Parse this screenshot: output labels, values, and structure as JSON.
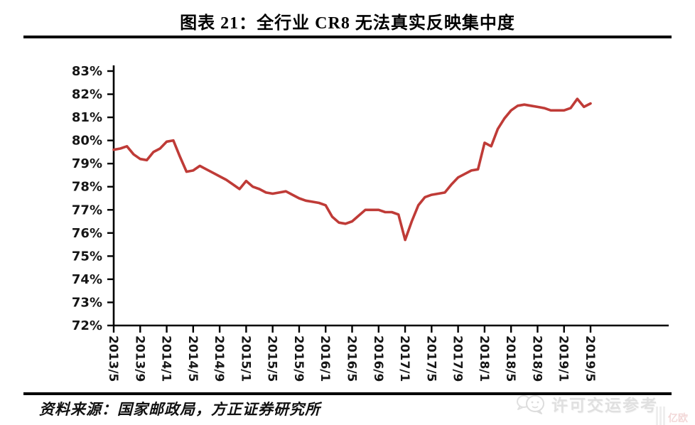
{
  "header": {
    "title": "图表 21：全行业 CR8 无法真实反映集中度"
  },
  "footer": {
    "source_text": "资料来源：国家邮政局，方正证券研究所",
    "watermark_text": "许可交运参考",
    "watermark_icon": "wechat-bubbles-icon",
    "corner_mark_text": "亿欧"
  },
  "chart_data": {
    "type": "line",
    "title": "全行业CR8无法真实反映集中度",
    "xlabel": "",
    "ylabel": "",
    "ylim": [
      72,
      83
    ],
    "y_tick_step": 1,
    "grid": false,
    "legend": "none",
    "line_color": "#bf3b37",
    "axis_color": "#000000",
    "y_tick_labels": [
      "83%",
      "82%",
      "81%",
      "80%",
      "79%",
      "78%",
      "77%",
      "76%",
      "75%",
      "74%",
      "73%",
      "72%"
    ],
    "x_tick_labels": [
      "2013/5",
      "2013/9",
      "2014/1",
      "2014/5",
      "2014/9",
      "2015/1",
      "2015/5",
      "2015/9",
      "2016/1",
      "2016/5",
      "2016/9",
      "2017/1",
      "2017/5",
      "2017/9",
      "2018/1",
      "2018/5",
      "2018/9",
      "2019/1",
      "2019/5"
    ],
    "x_tick_interval": 4,
    "x": [
      "2013/5",
      "2013/6",
      "2013/7",
      "2013/8",
      "2013/9",
      "2013/10",
      "2013/11",
      "2013/12",
      "2014/1",
      "2014/2",
      "2014/3",
      "2014/4",
      "2014/5",
      "2014/6",
      "2014/7",
      "2014/8",
      "2014/9",
      "2014/10",
      "2014/11",
      "2014/12",
      "2015/1",
      "2015/2",
      "2015/3",
      "2015/4",
      "2015/5",
      "2015/6",
      "2015/7",
      "2015/8",
      "2015/9",
      "2015/10",
      "2015/11",
      "2015/12",
      "2016/1",
      "2016/2",
      "2016/3",
      "2016/4",
      "2016/5",
      "2016/6",
      "2016/7",
      "2016/8",
      "2016/9",
      "2016/10",
      "2016/11",
      "2016/12",
      "2017/1",
      "2017/2",
      "2017/3",
      "2017/4",
      "2017/5",
      "2017/6",
      "2017/7",
      "2017/8",
      "2017/9",
      "2017/10",
      "2017/11",
      "2017/12",
      "2018/1",
      "2018/2",
      "2018/3",
      "2018/4",
      "2018/5",
      "2018/6",
      "2018/7",
      "2018/8",
      "2018/9",
      "2018/10",
      "2018/11",
      "2018/12",
      "2019/1",
      "2019/2",
      "2019/3",
      "2019/4",
      "2019/5"
    ],
    "series": [
      {
        "name": "全行业CR8 (%)",
        "values": [
          79.6,
          79.65,
          79.75,
          79.4,
          79.2,
          79.15,
          79.5,
          79.65,
          79.95,
          80.0,
          79.3,
          78.65,
          78.7,
          78.9,
          78.75,
          78.6,
          78.45,
          78.3,
          78.1,
          77.9,
          78.25,
          78.0,
          77.9,
          77.75,
          77.7,
          77.75,
          77.8,
          77.65,
          77.5,
          77.4,
          77.35,
          77.3,
          77.2,
          76.7,
          76.45,
          76.4,
          76.5,
          76.75,
          77.0,
          77.0,
          77.0,
          76.9,
          76.9,
          76.8,
          75.7,
          76.5,
          77.2,
          77.55,
          77.65,
          77.7,
          77.75,
          78.1,
          78.4,
          78.55,
          78.7,
          78.75,
          79.9,
          79.75,
          80.5,
          80.95,
          81.3,
          81.5,
          81.55,
          81.5,
          81.45,
          81.4,
          81.3,
          81.3,
          81.3,
          81.4,
          81.8,
          81.45,
          81.6
        ]
      }
    ]
  }
}
